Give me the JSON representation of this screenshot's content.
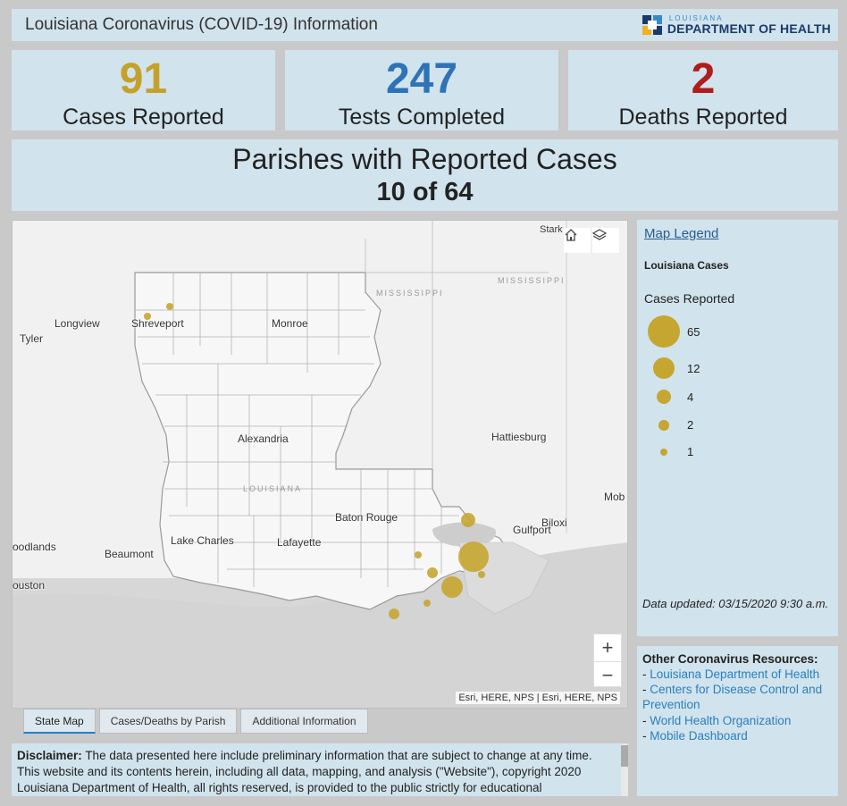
{
  "header": {
    "title": "Louisiana Coronavirus (COVID-19) Information",
    "logo_small": "LOUISIANA",
    "logo_big": "DEPARTMENT OF HEALTH"
  },
  "stats": {
    "cases": {
      "value": "91",
      "label": "Cases Reported",
      "color": "#c4a12b"
    },
    "tests": {
      "value": "247",
      "label": "Tests Completed",
      "color": "#2e73b8"
    },
    "deaths": {
      "value": "2",
      "label": "Deaths Reported",
      "color": "#b01c1c"
    }
  },
  "parishes": {
    "heading": "Parishes with Reported Cases",
    "count": "10 of 64"
  },
  "map": {
    "labels": {
      "stark": "Stark",
      "mississippi1": "MISSISSIPPI",
      "mississippi2": "MISSISSIPPI",
      "longview": "Longview",
      "tyler": "Tyler",
      "shreveport": "Shreveport",
      "monroe": "Monroe",
      "hattiesburg": "Hattiesburg",
      "alexandria": "Alexandria",
      "louisiana": "LOUISIANA",
      "mob": "Mob",
      "baton_rouge": "Baton Rouge",
      "biloxi": "Biloxi",
      "gulfport": "Gulfport",
      "woodlands": "oodlands",
      "lake_charles": "Lake Charles",
      "lafayette": "Lafayette",
      "beaumont": "Beaumont",
      "houston": "ouston"
    },
    "home_icon": "home-icon",
    "layers_icon": "layers-icon",
    "zoom_in": "+",
    "zoom_out": "−",
    "attribution": "Esri, HERE, NPS | Esri, HERE, NPS",
    "marker_color": "#c5a631"
  },
  "legend": {
    "title": "Map Legend",
    "subtitle": "Louisiana Cases",
    "cases_label": "Cases Reported",
    "items": [
      {
        "value": "65"
      },
      {
        "value": "12"
      },
      {
        "value": "4"
      },
      {
        "value": "2"
      },
      {
        "value": "1"
      }
    ],
    "updated": "Data updated: 03/15/2020 9:30 a.m."
  },
  "resources": {
    "heading": "Other Coronavirus Resources:",
    "links": [
      "Louisiana Department of Health",
      "Centers for Disease Control and Prevention",
      "World Health Organization",
      "Mobile Dashboard"
    ]
  },
  "tabs": [
    "State Map",
    "Cases/Deaths by Parish",
    "Additional Information"
  ],
  "disclaimer": {
    "label": "Disclaimer:",
    "text": "The data presented here include preliminary information that are subject to change at any time. This website and its contents herein, including all data, mapping, and analysis (\"Website\"), copyright 2020 Louisiana Department of Health, all rights reserved, is provided to the public strictly for educational"
  }
}
